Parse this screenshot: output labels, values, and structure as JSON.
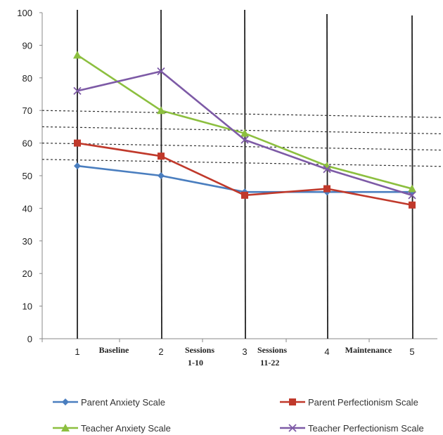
{
  "chart_data": {
    "type": "line",
    "title": "",
    "xlabel": "",
    "ylabel": "",
    "ylim": [
      0,
      100
    ],
    "yticks": [
      0,
      10,
      20,
      30,
      40,
      50,
      60,
      70,
      80,
      90,
      100
    ],
    "categories": [
      "1",
      "2",
      "3",
      "4",
      "5"
    ],
    "phase_labels": [
      "Baseline",
      "Sessions\n1-10",
      "Sessions\n11-22",
      "Maintenance"
    ],
    "reference_lines": [
      55,
      60,
      65,
      70
    ],
    "grid": false,
    "legend_position": "bottom",
    "series": [
      {
        "name": "Parent Anxiety Scale",
        "color": "#4a7ebf",
        "marker": "diamond",
        "values": [
          53,
          50,
          45,
          45,
          45
        ]
      },
      {
        "name": "Parent Perfectionism Scale",
        "color": "#c0392b",
        "marker": "square",
        "values": [
          60,
          56,
          44,
          46,
          41
        ]
      },
      {
        "name": "Teacher Anxiety Scale",
        "color": "#8cbf3f",
        "marker": "triangle",
        "values": [
          87,
          70,
          63,
          53,
          46
        ]
      },
      {
        "name": "Teacher Perfectionism Scale",
        "color": "#7d5aa6",
        "marker": "x",
        "values": [
          76,
          82,
          61,
          52,
          44
        ]
      }
    ]
  }
}
